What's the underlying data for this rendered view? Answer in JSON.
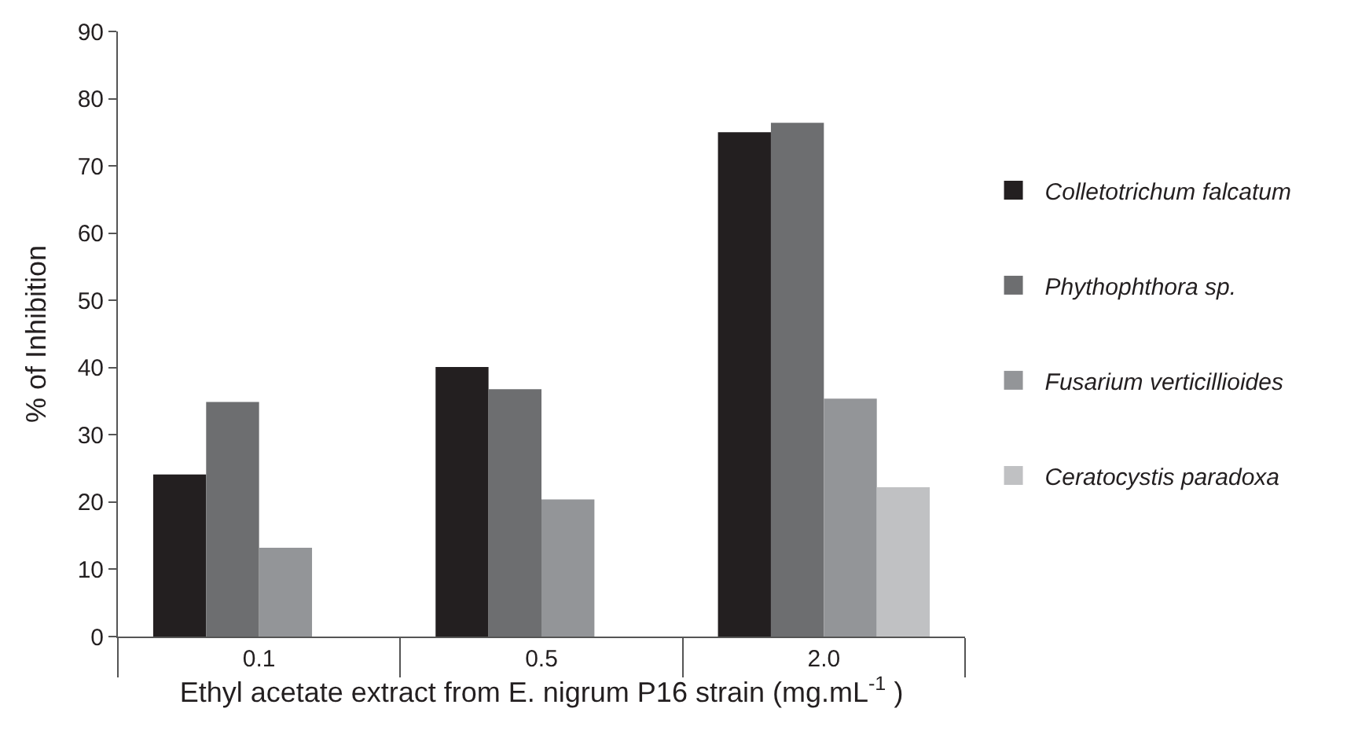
{
  "chart_data": {
    "type": "bar",
    "xlabel": "Ethyl acetate extract from E. nigrum P16 strain (mg.mL$^{-1}$ )",
    "ylabel": "% of Inhibition",
    "categories": [
      "0.1",
      "0.5",
      "2.0"
    ],
    "series": [
      {
        "name": "Colletotrichum falcatum",
        "color": "#231f20",
        "values": [
          24.1,
          40.1,
          75.0
        ]
      },
      {
        "name": "Phythophthora sp.",
        "color": "#6d6e70",
        "values": [
          34.9,
          36.8,
          76.4
        ]
      },
      {
        "name": "Fusarium verticillioides",
        "color": "#939598",
        "values": [
          13.2,
          20.4,
          35.4
        ]
      },
      {
        "name": "Ceratocystis paradoxa",
        "color": "#c0c1c3",
        "values": [
          null,
          null,
          22.2
        ]
      }
    ],
    "ylim": [
      0,
      90
    ],
    "yticks": [
      0,
      10,
      20,
      30,
      40,
      50,
      60,
      70,
      80,
      90
    ],
    "grid": false,
    "legend": "right"
  }
}
